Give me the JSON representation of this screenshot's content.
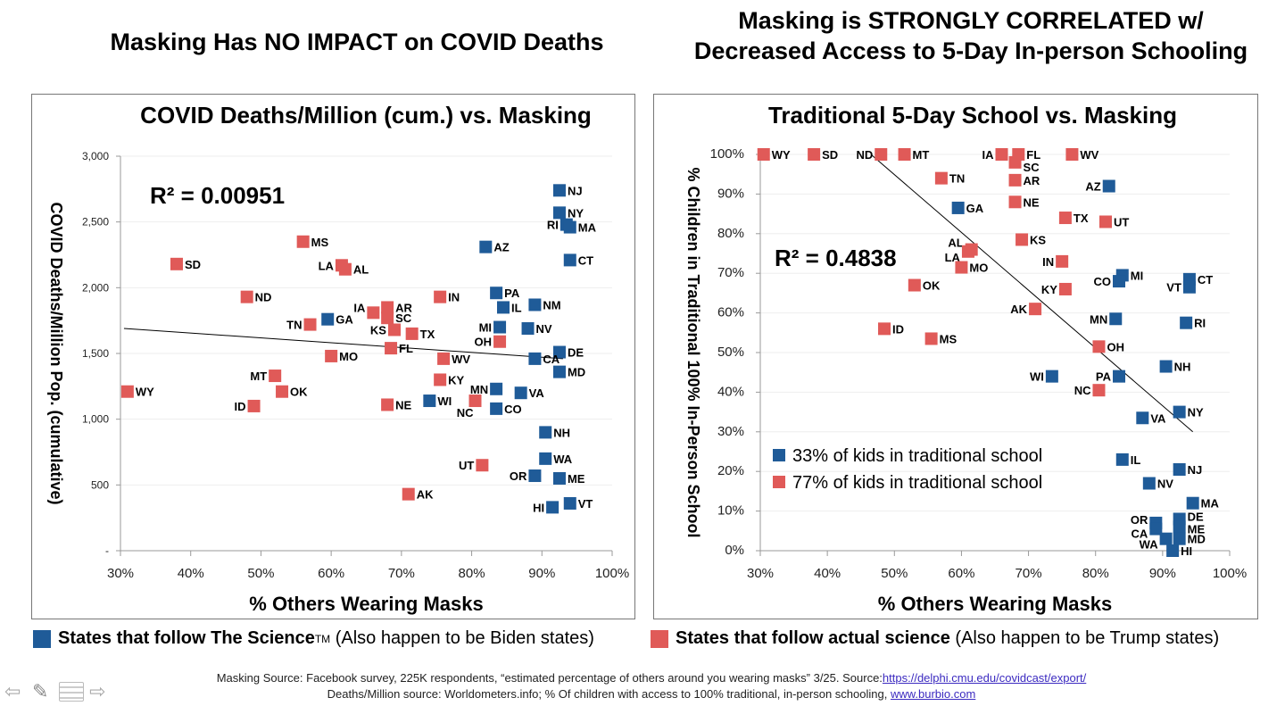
{
  "headlines": {
    "left": "Masking Has NO IMPACT on COVID Deaths",
    "right_line1": "Masking is STRONGLY CORRELATED w/",
    "right_line2": "Decreased Access to 5-Day In-person Schooling"
  },
  "colors": {
    "blue": "#1F5B98",
    "red": "#E05A58"
  },
  "chart_data": [
    {
      "type": "scatter",
      "title": "COVID Deaths/Million (cum.) vs. Masking",
      "xlabel": "% Others Wearing Masks",
      "ylabel": "COVID Deaths/Million Pop. (cumulative)",
      "xlim": [
        30,
        100
      ],
      "ylim": [
        0,
        3000
      ],
      "xticks": [
        "30%",
        "40%",
        "50%",
        "60%",
        "70%",
        "80%",
        "90%",
        "100%"
      ],
      "yticks": [
        "-",
        "500",
        "1,000",
        "1,500",
        "2,000",
        "2,500",
        "3,000"
      ],
      "annotation": "R² = 0.00951",
      "trendline": [
        [
          30.5,
          1690
        ],
        [
          93,
          1460
        ]
      ],
      "grid": true,
      "series": [
        {
          "name": "red",
          "points": [
            [
              "WY",
              31,
              1210
            ],
            [
              "SD",
              38,
              2180
            ],
            [
              "ND",
              48,
              1930
            ],
            [
              "MS",
              56,
              2350
            ],
            [
              "LA",
              61.5,
              2170
            ],
            [
              "AL",
              62,
              2140
            ],
            [
              "TN",
              57,
              1720
            ],
            [
              "IA",
              66,
              1810
            ],
            [
              "AR",
              68,
              1850
            ],
            [
              "SC",
              68,
              1770
            ],
            [
              "KS",
              69,
              1680
            ],
            [
              "TX",
              71.5,
              1650
            ],
            [
              "FL",
              68.5,
              1540
            ],
            [
              "MO",
              60,
              1480
            ],
            [
              "MT",
              52,
              1330
            ],
            [
              "OK",
              53,
              1210
            ],
            [
              "ID",
              49,
              1100
            ],
            [
              "NE",
              68,
              1110
            ],
            [
              "IN",
              75.5,
              1930
            ],
            [
              "WV",
              76,
              1460
            ],
            [
              "KY",
              75.5,
              1300
            ],
            [
              "NC",
              80.5,
              1140
            ],
            [
              "OH",
              84,
              1590
            ],
            [
              "UT",
              81.5,
              650
            ],
            [
              "AK",
              71,
              430
            ]
          ]
        },
        {
          "name": "blue",
          "points": [
            [
              "GA",
              59.5,
              1760
            ],
            [
              "NJ",
              92.5,
              2740
            ],
            [
              "NY",
              92.5,
              2570
            ],
            [
              "RI",
              93.5,
              2480
            ],
            [
              "MA",
              94,
              2460
            ],
            [
              "AZ",
              82,
              2310
            ],
            [
              "CT",
              94,
              2210
            ],
            [
              "PA",
              83.5,
              1960
            ],
            [
              "IL",
              84.5,
              1850
            ],
            [
              "NM",
              89,
              1870
            ],
            [
              "MI",
              84,
              1700
            ],
            [
              "NV",
              88,
              1690
            ],
            [
              "DE",
              92.5,
              1510
            ],
            [
              "CA",
              89,
              1460
            ],
            [
              "MD",
              92.5,
              1360
            ],
            [
              "MN",
              83.5,
              1230
            ],
            [
              "VA",
              87,
              1200
            ],
            [
              "WI",
              74,
              1140
            ],
            [
              "CO",
              83.5,
              1080
            ],
            [
              "NH",
              90.5,
              900
            ],
            [
              "WA",
              90.5,
              700
            ],
            [
              "OR",
              89,
              570
            ],
            [
              "ME",
              92.5,
              550
            ],
            [
              "VT",
              94,
              360
            ],
            [
              "HI",
              91.5,
              330
            ]
          ]
        }
      ]
    },
    {
      "type": "scatter",
      "title": "Traditional 5-Day School vs. Masking",
      "xlabel": "% Others Wearing Masks",
      "ylabel": "% Children in Traditional 100% In-Person School",
      "xlim": [
        30,
        100
      ],
      "ylim": [
        0,
        100
      ],
      "xticks": [
        "30%",
        "40%",
        "50%",
        "60%",
        "70%",
        "80%",
        "90%",
        "100%"
      ],
      "yticks": [
        "0%",
        "10%",
        "20%",
        "30%",
        "40%",
        "50%",
        "60%",
        "70%",
        "80%",
        "90%",
        "100%"
      ],
      "annotation": "R² = 0.4838",
      "trendline": [
        [
          46.5,
          100
        ],
        [
          94.5,
          30
        ]
      ],
      "grid": true,
      "legend": [
        "33% of kids in traditional school",
        "77% of kids in traditional school"
      ],
      "legend_position": "lower-left",
      "series": [
        {
          "name": "red",
          "points": [
            [
              "WY",
              30.5,
              100
            ],
            [
              "SD",
              38,
              100
            ],
            [
              "ND",
              48,
              100
            ],
            [
              "MT",
              51.5,
              100
            ],
            [
              "IA",
              66,
              100
            ],
            [
              "FL",
              68.5,
              100
            ],
            [
              "SC",
              68,
              98
            ],
            [
              "WV",
              76.5,
              100
            ],
            [
              "TN",
              57,
              94
            ],
            [
              "AR",
              68,
              93.5
            ],
            [
              "NE",
              68,
              88
            ],
            [
              "TX",
              75.5,
              84
            ],
            [
              "UT",
              81.5,
              83
            ],
            [
              "KS",
              69,
              78.5
            ],
            [
              "AL",
              61.5,
              76
            ],
            [
              "LA",
              61,
              75.5
            ],
            [
              "MO",
              60,
              71.5
            ],
            [
              "IN",
              75,
              73
            ],
            [
              "OK",
              53,
              67
            ],
            [
              "KY",
              75.5,
              66
            ],
            [
              "AK",
              71,
              61
            ],
            [
              "ID",
              48.5,
              56
            ],
            [
              "MS",
              55.5,
              53.5
            ],
            [
              "OH",
              80.5,
              51.5
            ],
            [
              "NC",
              80.5,
              40.5
            ]
          ]
        },
        {
          "name": "blue",
          "points": [
            [
              "AZ",
              82,
              92
            ],
            [
              "GA",
              59.5,
              86.5
            ],
            [
              "MI",
              84,
              69.5
            ],
            [
              "CO",
              83.5,
              68
            ],
            [
              "CT",
              94,
              68.5
            ],
            [
              "VT",
              94,
              66.5
            ],
            [
              "MN",
              83,
              58.5
            ],
            [
              "RI",
              93.5,
              57.5
            ],
            [
              "NH",
              90.5,
              46.5
            ],
            [
              "WI",
              73.5,
              44
            ],
            [
              "PA",
              83.5,
              44
            ],
            [
              "NY",
              92.5,
              35
            ],
            [
              "VA",
              87,
              33.5
            ],
            [
              "IL",
              84,
              23
            ],
            [
              "NJ",
              92.5,
              20.5
            ],
            [
              "NV",
              88,
              17
            ],
            [
              "MA",
              94.5,
              12
            ],
            [
              "DE",
              92.5,
              8
            ],
            [
              "OR",
              89,
              7
            ],
            [
              "ME",
              92.5,
              6
            ],
            [
              "CA",
              89,
              5.5
            ],
            [
              "MD",
              92.5,
              3
            ],
            [
              "WA",
              90.5,
              3
            ],
            [
              "HI",
              91.5,
              0
            ]
          ]
        }
      ]
    }
  ],
  "footer_legend": {
    "blue_bold": "States that follow The Science",
    "blue_tm": "TM",
    "blue_rest": " (Also happen to be Biden states)",
    "red_bold": "States that follow actual science",
    "red_rest": " (Also happen to be Trump states)"
  },
  "sources": {
    "line1_text": "Masking Source: Facebook survey, 225K respondents, “estimated percentage of others around you wearing masks”  3/25. Source:",
    "line1_link": "https://delphi.cmu.edu/covidcast/export/",
    "line2_text": "Deaths/Million source: Worldometers.info; % Of children with access to 100% traditional, in-person schooling, ",
    "line2_link": "www.burbio.com"
  }
}
